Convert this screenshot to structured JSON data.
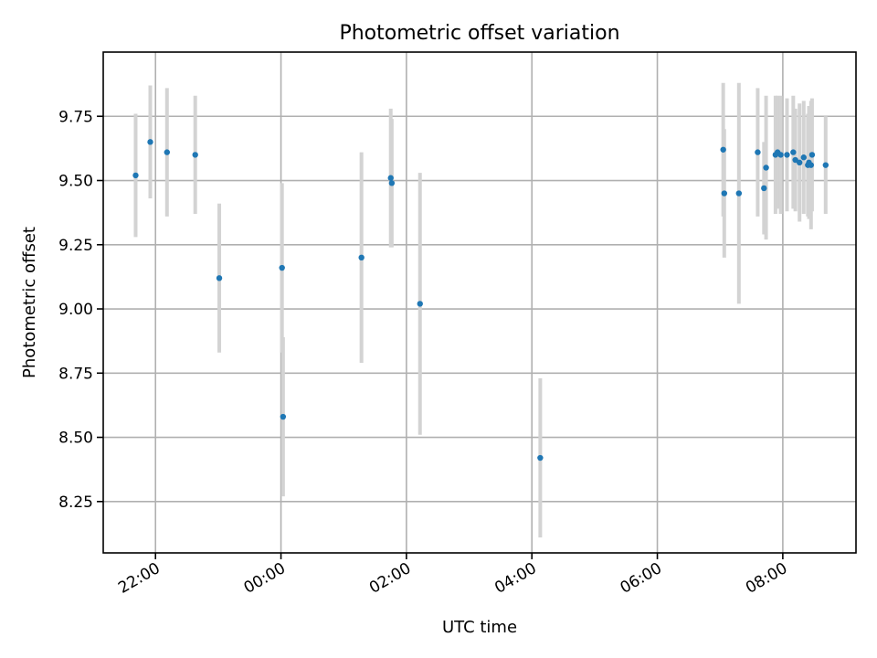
{
  "chart_data": {
    "type": "scatter",
    "title": "Photometric offset variation",
    "xlabel": "UTC time",
    "ylabel": "Photometric offset",
    "x_unit": "time",
    "xlim": [
      "21:10",
      "33:10"
    ],
    "ylim": [
      8.05,
      10.0
    ],
    "x_ticks": [
      "22:00",
      "00:00",
      "02:00",
      "04:00",
      "06:00",
      "08:00"
    ],
    "y_ticks": [
      "8.25",
      "8.50",
      "8.75",
      "9.00",
      "9.25",
      "9.50",
      "9.75"
    ],
    "grid": true,
    "colors": {
      "points": "#1f77b4",
      "errorbars": "#d3d3d3",
      "grid": "#b0b0b0"
    },
    "series": [
      {
        "x": [
          "21:41",
          "21:55",
          "22:11",
          "22:38",
          "23:01",
          "00:01",
          "00:02",
          "01:17",
          "01:45",
          "01:46",
          "02:13",
          "04:08",
          "07:03",
          "07:04",
          "07:18",
          "07:36",
          "07:42",
          "07:44",
          "07:53",
          "07:55",
          "07:58",
          "08:04",
          "08:10",
          "08:12",
          "08:16",
          "08:20",
          "08:24",
          "08:25",
          "08:27",
          "08:28",
          "08:41"
        ],
        "y": [
          9.52,
          9.65,
          9.61,
          9.6,
          9.12,
          9.16,
          8.58,
          9.2,
          9.51,
          9.49,
          9.02,
          8.42,
          9.62,
          9.45,
          9.45,
          9.61,
          9.47,
          9.55,
          9.6,
          9.61,
          9.6,
          9.6,
          9.61,
          9.58,
          9.57,
          9.59,
          9.56,
          9.57,
          9.56,
          9.6,
          9.56
        ],
        "yerr": [
          0.24,
          0.22,
          0.25,
          0.23,
          0.29,
          0.33,
          0.31,
          0.41,
          0.27,
          0.25,
          0.51,
          0.31,
          0.26,
          0.25,
          0.43,
          0.25,
          0.18,
          0.28,
          0.23,
          0.22,
          0.23,
          0.22,
          0.22,
          0.2,
          0.23,
          0.22,
          0.2,
          0.22,
          0.25,
          0.22,
          0.19
        ]
      }
    ]
  }
}
